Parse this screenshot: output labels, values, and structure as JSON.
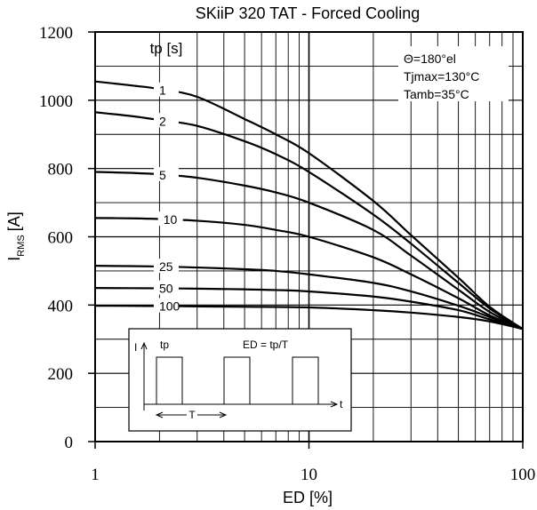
{
  "chart_data": {
    "type": "line",
    "title": "SKiiP 320 TAT - Forced Cooling",
    "xlabel": "ED [%]",
    "ylabel_main": "I",
    "ylabel_sub": "RMS",
    "ylabel_unit": "[A]",
    "x_scale": "log",
    "xlim": [
      1,
      100
    ],
    "ylim": [
      0,
      1200
    ],
    "x_ticks": [
      1,
      10,
      100
    ],
    "x_tick_labels": [
      "1",
      "10",
      "100"
    ],
    "y_ticks": [
      0,
      200,
      400,
      600,
      800,
      1000,
      1200
    ],
    "y_tick_labels": [
      "0",
      "200",
      "400",
      "600",
      "800",
      "1000",
      "1200"
    ],
    "grid": true,
    "legend_title": "tp [s]",
    "annotations": [
      "Θ=180°el",
      "Tjmax=130°C",
      "Tamb=35°C"
    ],
    "series": [
      {
        "name": "1",
        "points": [
          [
            1,
            1055
          ],
          [
            1.5,
            1043
          ],
          [
            2,
            1033
          ],
          [
            3,
            1010
          ],
          [
            5,
            945
          ],
          [
            7,
            900
          ],
          [
            10,
            845
          ],
          [
            20,
            705
          ],
          [
            30,
            605
          ],
          [
            50,
            480
          ],
          [
            70,
            395
          ],
          [
            100,
            330
          ]
        ]
      },
      {
        "name": "2",
        "points": [
          [
            1,
            965
          ],
          [
            1.5,
            953
          ],
          [
            2,
            942
          ],
          [
            3,
            925
          ],
          [
            5,
            880
          ],
          [
            7,
            842
          ],
          [
            10,
            790
          ],
          [
            20,
            665
          ],
          [
            30,
            580
          ],
          [
            50,
            465
          ],
          [
            70,
            390
          ],
          [
            100,
            330
          ]
        ]
      },
      {
        "name": "5",
        "points": [
          [
            1,
            790
          ],
          [
            1.5,
            787
          ],
          [
            2,
            783
          ],
          [
            3,
            773
          ],
          [
            5,
            750
          ],
          [
            7,
            730
          ],
          [
            10,
            700
          ],
          [
            20,
            620
          ],
          [
            30,
            545
          ],
          [
            50,
            445
          ],
          [
            70,
            380
          ],
          [
            100,
            330
          ]
        ]
      },
      {
        "name": "10",
        "points": [
          [
            1,
            655
          ],
          [
            1.5,
            654
          ],
          [
            2,
            652
          ],
          [
            3,
            647
          ],
          [
            5,
            635
          ],
          [
            7,
            620
          ],
          [
            10,
            600
          ],
          [
            20,
            540
          ],
          [
            30,
            490
          ],
          [
            50,
            420
          ],
          [
            70,
            370
          ],
          [
            100,
            330
          ]
        ]
      },
      {
        "name": "25",
        "points": [
          [
            1,
            515
          ],
          [
            2,
            513
          ],
          [
            3,
            510
          ],
          [
            5,
            505
          ],
          [
            7,
            500
          ],
          [
            10,
            490
          ],
          [
            20,
            465
          ],
          [
            30,
            440
          ],
          [
            50,
            398
          ],
          [
            70,
            365
          ],
          [
            100,
            330
          ]
        ]
      },
      {
        "name": "50",
        "points": [
          [
            1,
            450
          ],
          [
            2,
            449
          ],
          [
            3,
            448
          ],
          [
            5,
            446
          ],
          [
            7,
            444
          ],
          [
            10,
            440
          ],
          [
            20,
            425
          ],
          [
            30,
            410
          ],
          [
            50,
            385
          ],
          [
            70,
            358
          ],
          [
            100,
            330
          ]
        ]
      },
      {
        "name": "100",
        "points": [
          [
            1,
            398
          ],
          [
            2,
            397
          ],
          [
            3,
            396
          ],
          [
            5,
            395
          ],
          [
            10,
            393
          ],
          [
            20,
            385
          ],
          [
            30,
            378
          ],
          [
            50,
            365
          ],
          [
            70,
            352
          ],
          [
            100,
            330
          ]
        ]
      }
    ],
    "inset": {
      "axis_y_label": "I",
      "axis_x_label": "t",
      "pulse_label": "tp",
      "formula": "ED = tp/T",
      "period_label": "T"
    }
  }
}
